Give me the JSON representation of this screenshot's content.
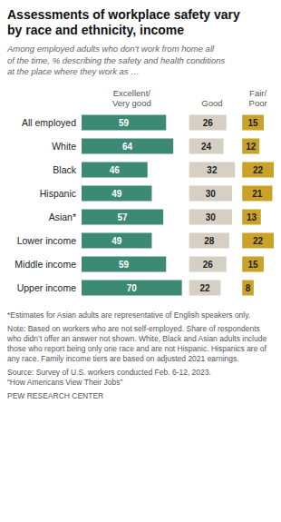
{
  "chart_data": {
    "type": "bar",
    "orientation": "horizontal",
    "title": "Assessments of workplace safety vary\nby race and ethnicity, income",
    "subtitle": "Among employed adults who don’t work from home all\nof the time, % describing the safety and health conditions\nat the place where they work as …",
    "categories": [
      "All employed",
      "White",
      "Black",
      "Hispanic",
      "Asian*",
      "Lower income",
      "Middle income",
      "Upper income"
    ],
    "series": [
      {
        "name": "Excellent/\nVery good",
        "color": "#3d8a74",
        "values": [
          59,
          64,
          46,
          49,
          57,
          49,
          59,
          70
        ]
      },
      {
        "name": "Good",
        "color": "#d6d0c4",
        "values": [
          26,
          24,
          32,
          30,
          30,
          28,
          26,
          22
        ]
      },
      {
        "name": "Fair/\nPoor",
        "color": "#c9a227",
        "values": [
          15,
          12,
          22,
          21,
          13,
          22,
          15,
          8
        ]
      }
    ],
    "data_labels": true,
    "tick_labels": "y",
    "grid": false,
    "annotations": [
      "*Estimates for Asian adults are representative of English speakers only.",
      "Note: Based on workers who are not self-employed. Share of respondents who didn’t offer an answer not shown. White, Black and Asian adults include those who report being only one race and are not Hispanic. Hispanics are of any race. Family income tiers are based on adjusted 2021 earnings.",
      "Source: Survey of U.S. workers conducted Feb. 6-12, 2023.\n“How Americans View Their Jobs”",
      "PEW RESEARCH CENTER"
    ]
  }
}
